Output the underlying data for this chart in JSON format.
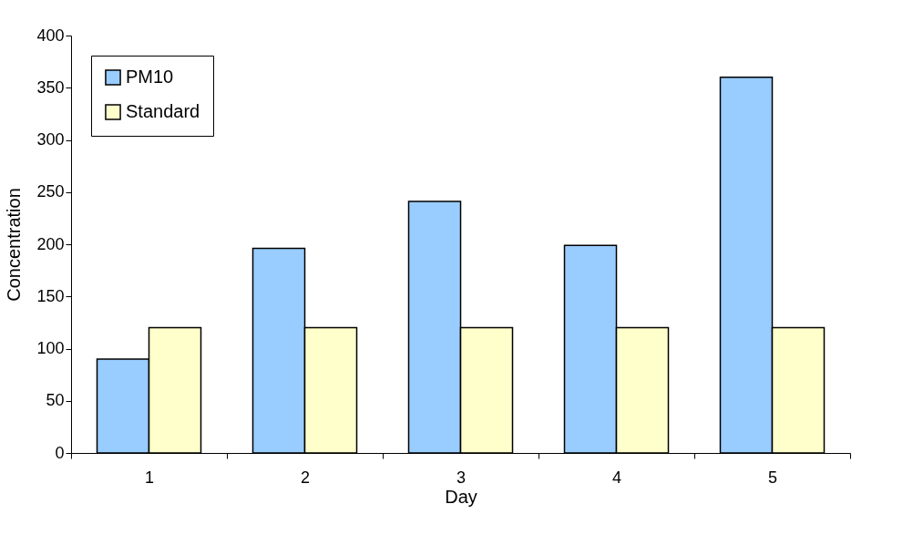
{
  "chart_data": {
    "type": "bar",
    "xlabel": "Day",
    "ylabel": "Concentration",
    "categories": [
      "1",
      "2",
      "3",
      "4",
      "5"
    ],
    "series": [
      {
        "name": "PM10",
        "color": "#99ccff",
        "values": [
          90,
          196,
          241,
          199,
          360
        ]
      },
      {
        "name": "Standard",
        "color": "#ffffcc",
        "values": [
          120,
          120,
          120,
          120,
          120
        ]
      }
    ],
    "ylim": [
      0,
      400
    ],
    "yticks": [
      0,
      50,
      100,
      150,
      200,
      250,
      300,
      350,
      400
    ],
    "grid": false,
    "legend": "top left"
  }
}
